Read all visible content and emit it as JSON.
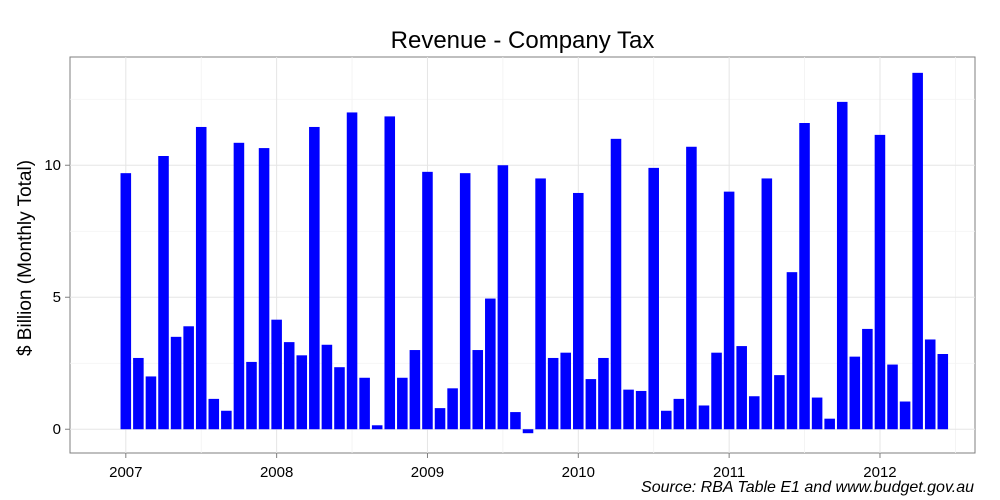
{
  "chart_data": {
    "type": "bar",
    "title": "Revenue - Company Tax",
    "ylabel": "$ Billion (Monthly Total)",
    "xlabel": "",
    "source": "Source: RBA Table E1 and www.budget.gov.au",
    "ylim": [
      -0.9,
      14.1
    ],
    "xlim": [
      2006.63,
      2012.63
    ],
    "yticks": [
      0,
      5,
      10
    ],
    "xticks": [
      2007,
      2008,
      2009,
      2010,
      2011,
      2012
    ],
    "grid": true,
    "bar_color": "#0000ff",
    "x_start": 2007.0,
    "x_step": 0.08333,
    "values": [
      9.7,
      2.7,
      2.0,
      10.35,
      3.5,
      3.9,
      11.45,
      1.15,
      0.7,
      10.85,
      2.55,
      10.65,
      4.15,
      3.3,
      2.8,
      11.45,
      3.2,
      2.35,
      12.0,
      1.95,
      0.15,
      11.85,
      1.95,
      3.0,
      9.75,
      0.8,
      1.55,
      9.7,
      3.0,
      4.95,
      10.0,
      0.65,
      -0.15,
      9.5,
      2.7,
      2.9,
      8.95,
      1.9,
      2.7,
      11.0,
      1.5,
      1.45,
      9.9,
      0.7,
      1.15,
      10.7,
      0.9,
      2.9,
      9.0,
      3.15,
      1.25,
      9.5,
      2.05,
      5.95,
      11.6,
      1.2,
      0.4,
      12.4,
      2.75,
      3.8,
      11.15,
      2.45,
      1.05,
      13.5,
      3.4,
      2.85
    ]
  }
}
